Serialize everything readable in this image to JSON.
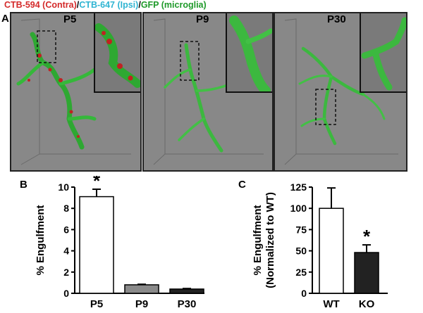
{
  "legend": {
    "contra": "CTB-594 (Contra)",
    "sep1": "/",
    "ipsi": "CTB-647 (Ipsi)",
    "sep2": "/",
    "gfp": "GFP (microglia)",
    "colors": {
      "contra": "#d42a2a",
      "ipsi": "#2fb4d2",
      "gfp": "#1f9a2a"
    }
  },
  "panel_a": {
    "letter": "A",
    "images": [
      {
        "label": "P5"
      },
      {
        "label": "P9"
      },
      {
        "label": "P30"
      }
    ]
  },
  "panel_b": {
    "letter": "B"
  },
  "panel_c": {
    "letter": "C"
  },
  "chart_data": [
    {
      "type": "bar",
      "panel": "B",
      "categories": [
        "P5",
        "P9",
        "P30"
      ],
      "values": [
        9.1,
        0.8,
        0.4
      ],
      "errors": [
        0.7,
        0.05,
        0.05
      ],
      "bar_colors": [
        "#ffffff",
        "#8a8a8a",
        "#222222"
      ],
      "ylabel": "% Engulfment",
      "ylim": [
        0,
        10
      ],
      "yticks": [
        0,
        2,
        4,
        6,
        8,
        10
      ],
      "significance": [
        {
          "category": "P5",
          "mark": "*"
        }
      ]
    },
    {
      "type": "bar",
      "panel": "C",
      "categories": [
        "WT",
        "KO"
      ],
      "values": [
        100,
        48
      ],
      "errors": [
        24,
        9
      ],
      "bar_colors": [
        "#ffffff",
        "#222222"
      ],
      "ylabel": "% Engulfment",
      "ylabel2": "(Normalized to WT)",
      "ylim": [
        0,
        125
      ],
      "yticks": [
        0,
        25,
        50,
        75,
        100,
        125
      ],
      "significance": [
        {
          "category": "KO",
          "mark": "*"
        }
      ]
    }
  ]
}
